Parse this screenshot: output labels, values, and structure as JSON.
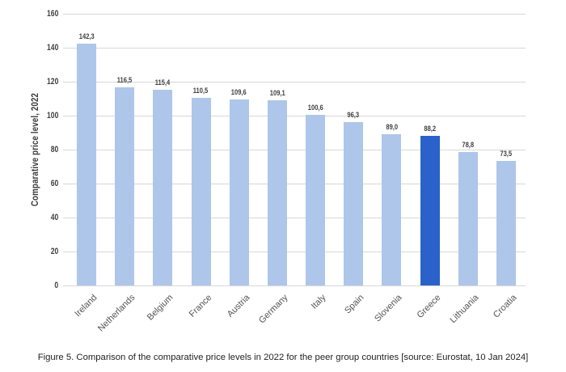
{
  "caption": "Figure 5. Comparison of the comparative price levels in 2022 for the peer group countries [source: Eurostat, 10 Jan 2024]",
  "chart_data": {
    "type": "bar",
    "title": "",
    "xlabel": "",
    "ylabel": "Comparative price level, 2022",
    "categories": [
      "Ireland",
      "Netherlands",
      "Belgium",
      "France",
      "Austria",
      "Germany",
      "Italy",
      "Spain",
      "Slovenia",
      "Greece",
      "Lithuania",
      "Croatia"
    ],
    "values": [
      142.3,
      116.5,
      115.4,
      110.5,
      109.6,
      109.1,
      100.6,
      96.3,
      89.0,
      88.2,
      78.8,
      73.5
    ],
    "value_labels": [
      "142,3",
      "116,5",
      "115,4",
      "110,5",
      "109,6",
      "109,1",
      "100,6",
      "96,3",
      "89,0",
      "88,2",
      "78,8",
      "73,5"
    ],
    "highlight_index": 9,
    "highlight_category": "Greece",
    "bar_color": "#aec6e9",
    "highlight_color": "#2a62c9",
    "gridline_color": "#d8d8d8",
    "ylim": [
      0,
      160
    ],
    "yticks": [
      0,
      20,
      40,
      60,
      80,
      100,
      120,
      140,
      160
    ],
    "grid": "horizontal",
    "legend": "none"
  }
}
